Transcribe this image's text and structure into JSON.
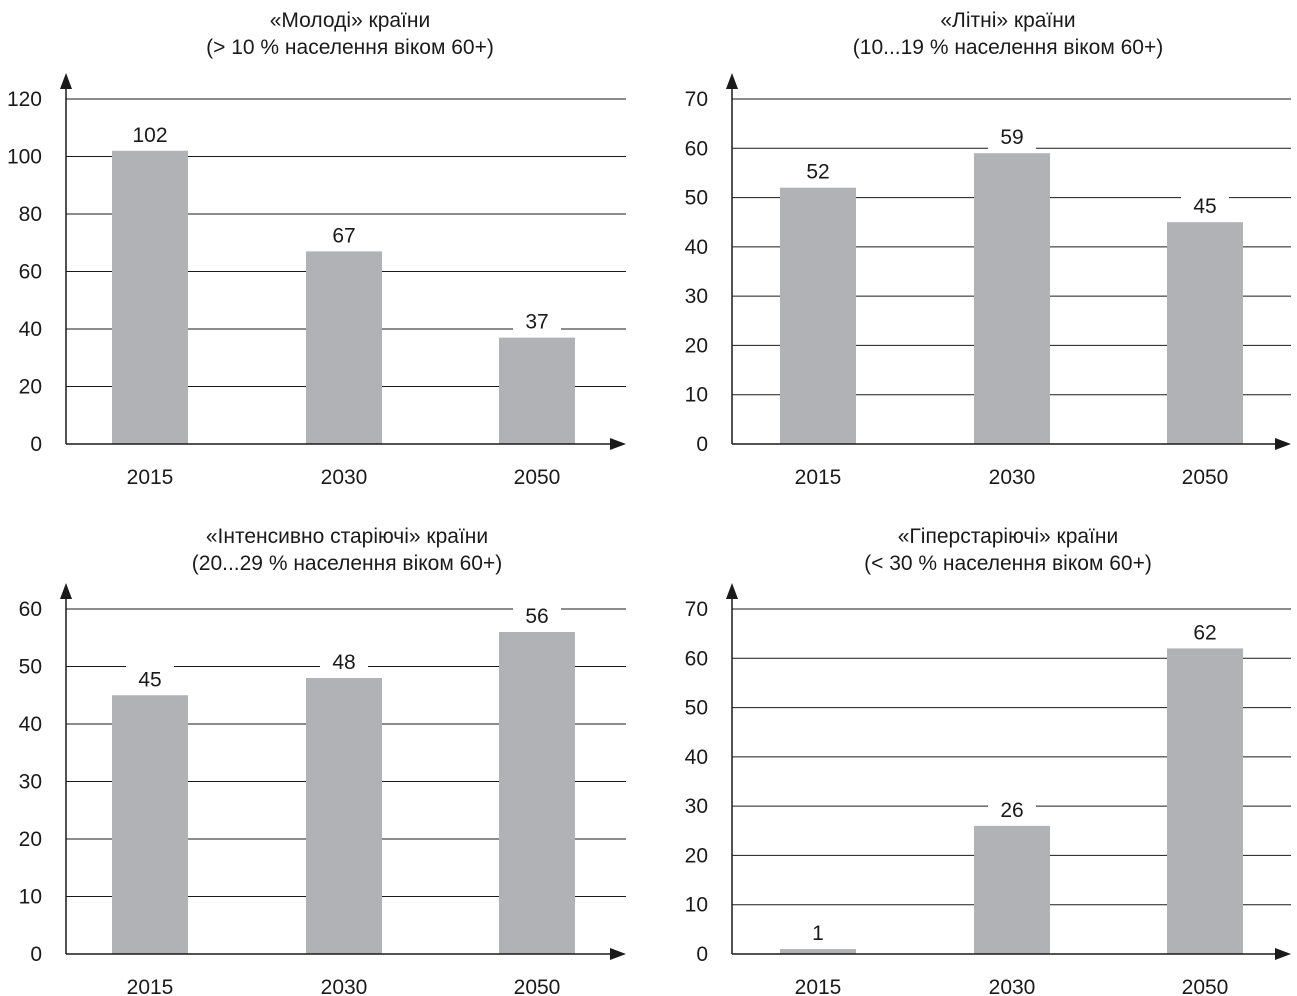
{
  "chart_data": [
    {
      "type": "bar",
      "title": "«Молоді»  країни",
      "subtitle": "(> 10 % населення віком 60+)",
      "categories": [
        "2015",
        "2030",
        "2050"
      ],
      "values": [
        102,
        67,
        37
      ],
      "value_labels": [
        "102",
        "67",
        "37"
      ],
      "ylim": [
        0,
        120
      ],
      "yticks": [
        "0",
        "20",
        "40",
        "60",
        "80",
        "100",
        "120"
      ],
      "ytick_values": [
        0,
        20,
        40,
        60,
        80,
        100,
        120
      ],
      "grid": true,
      "bar_color": "#b1b2b6"
    },
    {
      "type": "bar",
      "title": "«Літні» країни",
      "subtitle": "(10...19 % населення віком 60+)",
      "categories": [
        "2015",
        "2030",
        "2050"
      ],
      "values": [
        52,
        59,
        45
      ],
      "value_labels": [
        "52",
        "59",
        "45"
      ],
      "ylim": [
        0,
        70
      ],
      "yticks": [
        "0",
        "10",
        "20",
        "30",
        "40",
        "50",
        "60",
        "70"
      ],
      "ytick_values": [
        0,
        10,
        20,
        30,
        40,
        50,
        60,
        70
      ],
      "grid": true,
      "bar_color": "#b1b2b6"
    },
    {
      "type": "bar",
      "title": "«Інтенсивно старіючі» країни",
      "subtitle": "(20...29 % населення віком 60+)",
      "categories": [
        "2015",
        "2030",
        "2050"
      ],
      "values": [
        45,
        48,
        56
      ],
      "value_labels": [
        "45",
        "48",
        "56"
      ],
      "ylim": [
        0,
        60
      ],
      "yticks": [
        "0",
        "10",
        "20",
        "30",
        "40",
        "50",
        "60"
      ],
      "ytick_values": [
        0,
        10,
        20,
        30,
        40,
        50,
        60
      ],
      "grid": true,
      "bar_color": "#b1b2b6"
    },
    {
      "type": "bar",
      "title": "«Гіперстаріючі» країни",
      "subtitle": "(< 30 %  населення віком 60+)",
      "categories": [
        "2015",
        "2030",
        "2050"
      ],
      "values": [
        1,
        26,
        62
      ],
      "value_labels": [
        "1",
        "26",
        "62"
      ],
      "ylim": [
        0,
        70
      ],
      "yticks": [
        "0",
        "10",
        "20",
        "30",
        "40",
        "50",
        "60",
        "70"
      ],
      "ytick_values": [
        0,
        10,
        20,
        30,
        40,
        50,
        60,
        70
      ],
      "grid": true,
      "bar_color": "#b1b2b6"
    }
  ]
}
